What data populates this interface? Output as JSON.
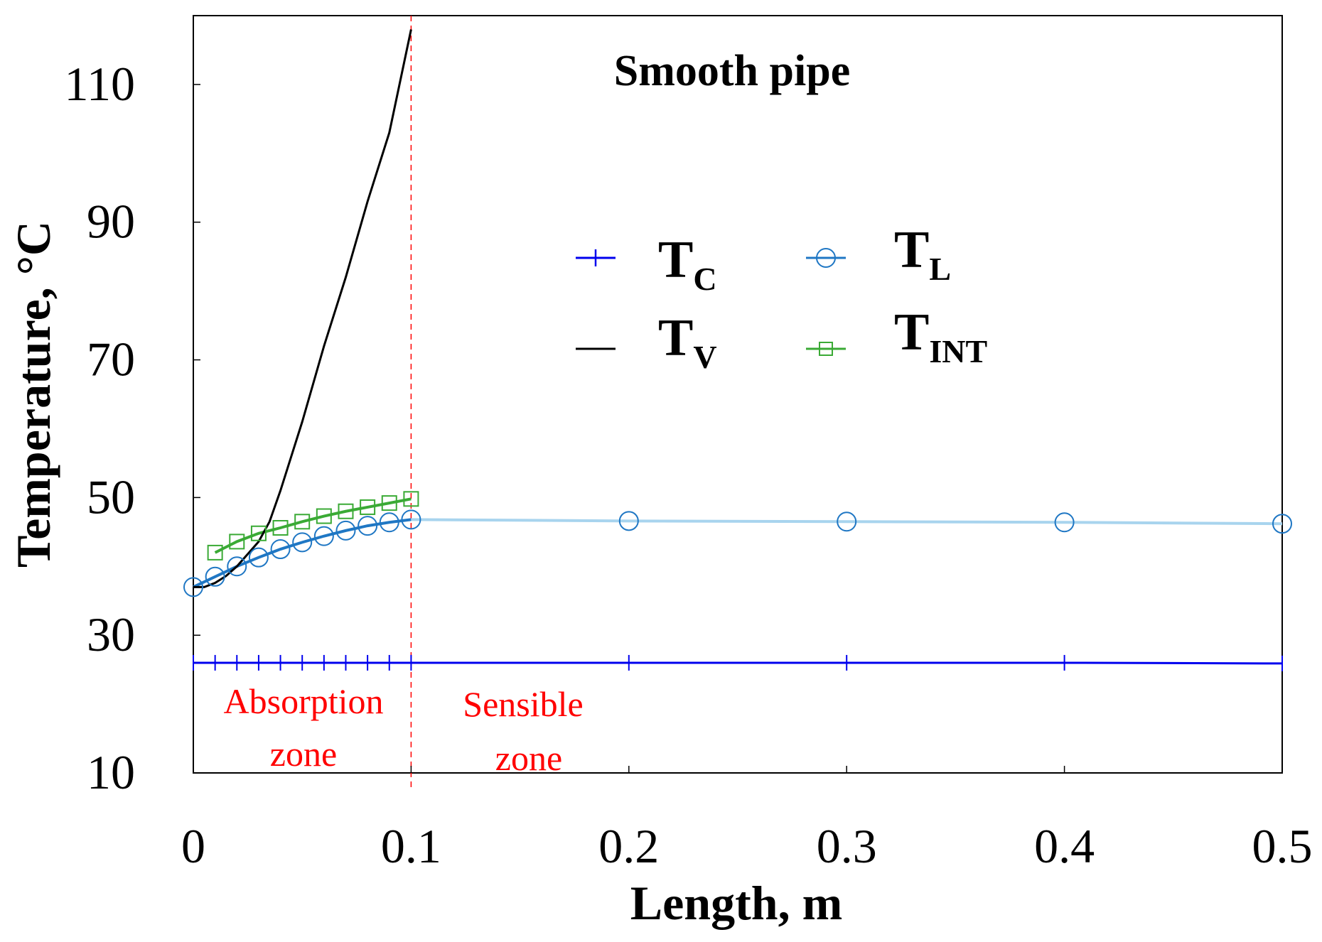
{
  "chart_data": {
    "type": "line",
    "title": "Smooth pipe",
    "xlabel": "Length, m",
    "ylabel": "Temperature, °C",
    "xlim": [
      0,
      0.5
    ],
    "ylim": [
      10,
      120
    ],
    "xticks": [
      "0",
      "0.1",
      "0.2",
      "0.3",
      "0.4",
      "0.5"
    ],
    "xtick_values": [
      0,
      0.1,
      0.2,
      0.3,
      0.4,
      0.5
    ],
    "yticks": [
      "10",
      "30",
      "50",
      "70",
      "90",
      "110"
    ],
    "ytick_values": [
      10,
      30,
      50,
      70,
      90,
      110
    ],
    "grid": false,
    "legend_position": "upper-middle",
    "zone_divider_x": 0.1,
    "annotations": [
      {
        "text_lines": [
          "Absorption",
          "zone"
        ],
        "x": 0.05
      },
      {
        "text_lines": [
          "Sensible",
          "zone"
        ],
        "x": 0.152
      }
    ],
    "series": [
      {
        "name": "TC",
        "label_main": "T",
        "label_sub": "C",
        "color": "#0000ee",
        "marker": "plus",
        "x": [
          0,
          0.01,
          0.02,
          0.03,
          0.04,
          0.05,
          0.06,
          0.07,
          0.08,
          0.09,
          0.1,
          0.2,
          0.3,
          0.4,
          0.5
        ],
        "y": [
          26,
          26,
          26,
          26,
          26,
          26,
          26,
          26,
          26,
          26,
          26,
          26,
          26,
          26,
          25.9
        ]
      },
      {
        "name": "TV",
        "label_main": "T",
        "label_sub": "V",
        "color": "#000000",
        "marker": "none",
        "x": [
          0,
          0.005,
          0.01,
          0.015,
          0.02,
          0.025,
          0.03,
          0.035,
          0.04,
          0.05,
          0.06,
          0.07,
          0.08,
          0.09,
          0.1
        ],
        "y": [
          37,
          37,
          37.6,
          38.6,
          40,
          41.8,
          43.6,
          46.5,
          51,
          61,
          72,
          82,
          93,
          103,
          118
        ]
      },
      {
        "name": "TL",
        "label_main": "T",
        "label_sub": "L",
        "color": "#1f77c4",
        "color_light": "#a8d4ee",
        "marker": "circle",
        "x": [
          0,
          0.01,
          0.02,
          0.03,
          0.04,
          0.05,
          0.06,
          0.07,
          0.08,
          0.09,
          0.1,
          0.2,
          0.3,
          0.4,
          0.5
        ],
        "y": [
          37,
          38.5,
          40,
          41.3,
          42.5,
          43.5,
          44.4,
          45.2,
          45.9,
          46.4,
          46.8,
          46.6,
          46.5,
          46.4,
          46.2
        ]
      },
      {
        "name": "TINT",
        "label_main": "T",
        "label_sub": "INT",
        "color": "#3aaa35",
        "marker": "square",
        "x": [
          0.01,
          0.02,
          0.03,
          0.04,
          0.05,
          0.06,
          0.07,
          0.08,
          0.09,
          0.1
        ],
        "y": [
          42,
          43.6,
          44.8,
          45.6,
          46.5,
          47.3,
          48,
          48.6,
          49.2,
          49.8
        ]
      }
    ]
  }
}
